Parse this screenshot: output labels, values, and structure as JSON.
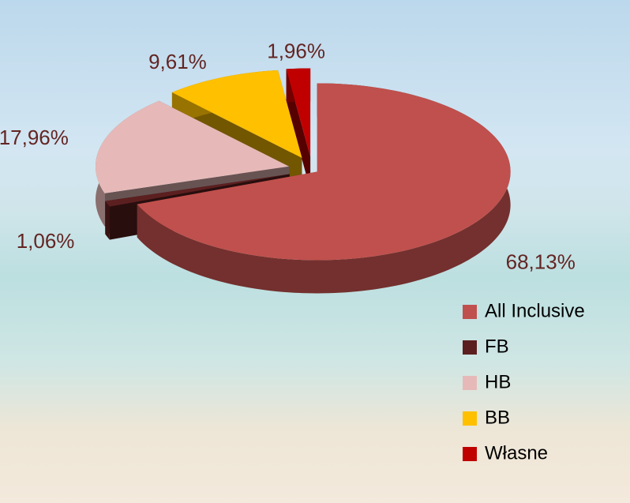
{
  "chart_data": {
    "type": "pie",
    "categories": [
      "All Inclusive",
      "FB",
      "HB",
      "BB",
      "Własne"
    ],
    "values": [
      68.13,
      1.06,
      17.96,
      9.61,
      1.96
    ],
    "value_labels": [
      "68,13%",
      "1,06%",
      "17,96%",
      "9,61%",
      "1,96%"
    ],
    "colors": [
      "#c0504d",
      "#5c1f1f",
      "#e6b9b8",
      "#ffc000",
      "#c00000"
    ],
    "legend": "right"
  }
}
